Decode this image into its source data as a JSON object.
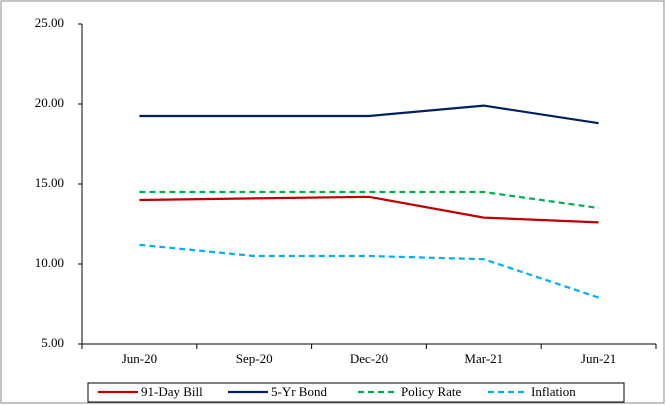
{
  "chart_data": {
    "type": "line",
    "categories": [
      "Jun-20",
      "Sep-20",
      "Dec-20",
      "Mar-21",
      "Jun-21"
    ],
    "series": [
      {
        "name": "91-Day Bill",
        "color": "#c00000",
        "dash": "solid",
        "values": [
          14.0,
          14.1,
          14.2,
          12.9,
          12.6
        ]
      },
      {
        "name": "5-Yr Bond",
        "color": "#002060",
        "dash": "solid",
        "values": [
          19.25,
          19.25,
          19.25,
          19.9,
          18.8
        ]
      },
      {
        "name": "Policy Rate",
        "color": "#00b050",
        "dash": "dashed",
        "values": [
          14.5,
          14.5,
          14.5,
          14.5,
          13.5
        ]
      },
      {
        "name": "Inflation",
        "color": "#00b0f0",
        "dash": "dashed",
        "values": [
          11.2,
          10.5,
          10.5,
          10.3,
          7.9
        ]
      }
    ],
    "ylim": [
      5,
      25
    ],
    "yticks": [
      {
        "value": 5,
        "label": "5.00"
      },
      {
        "value": 10,
        "label": "10.00"
      },
      {
        "value": 15,
        "label": "15.00"
      },
      {
        "value": 20,
        "label": "20.00"
      },
      {
        "value": 25,
        "label": "25.00"
      }
    ],
    "grid": false,
    "legend": "bottom"
  }
}
